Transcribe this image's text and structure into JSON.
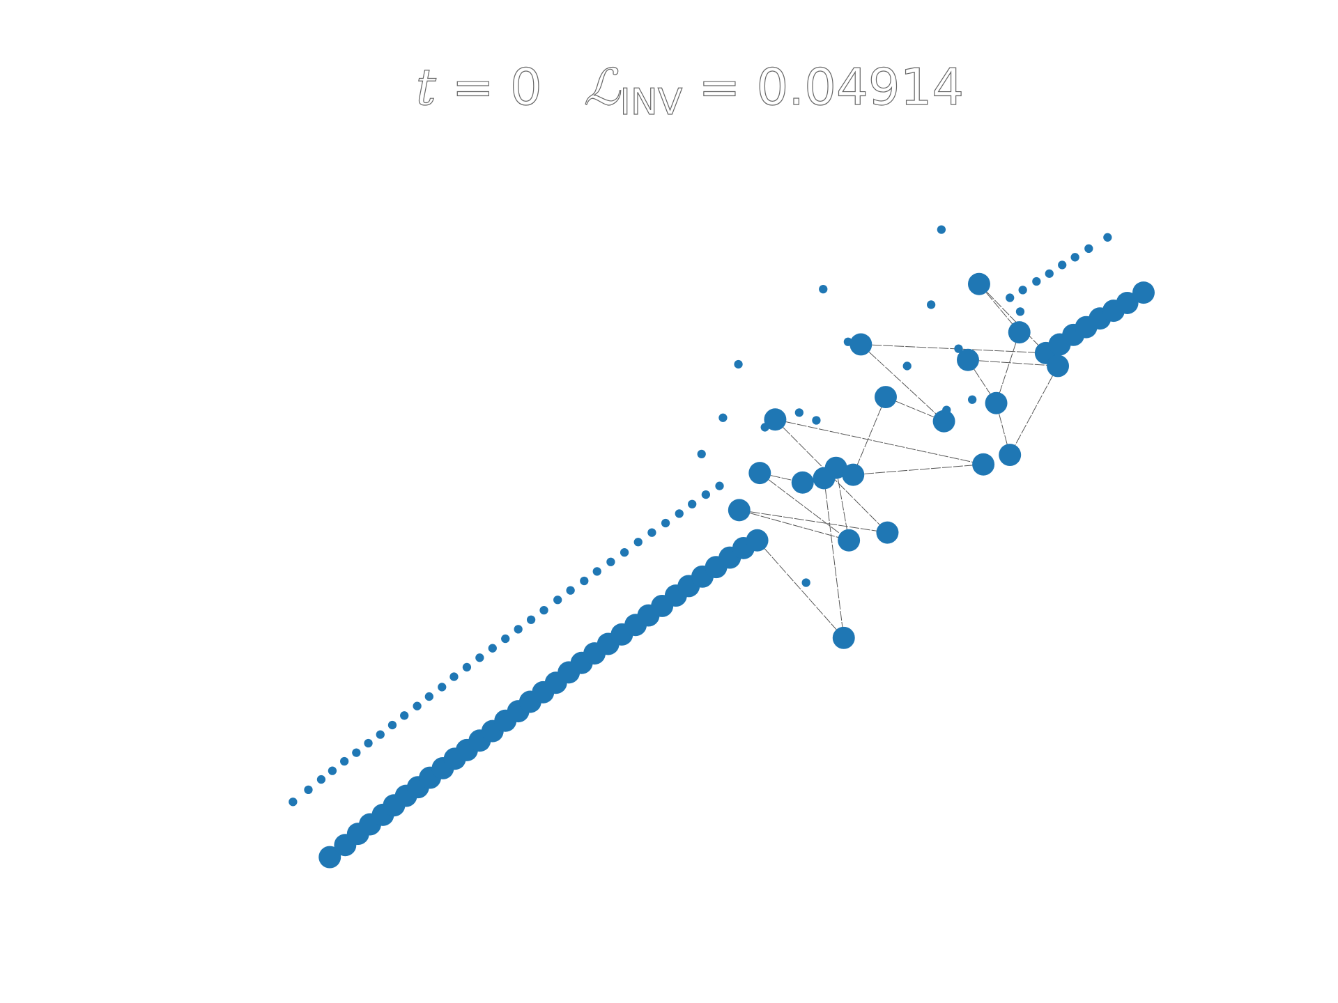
{
  "chart_data": {
    "type": "scatter",
    "title_parts": [
      "t",
      " = 0",
      "ℒ",
      "INV",
      " = 0.04914"
    ],
    "xlim": [
      0,
      1562
    ],
    "ylim": [
      1162,
      0
    ],
    "series": [
      {
        "color": "#1f77b4",
        "marker_radius": 13,
        "x": [
          385,
          403,
          418,
          432,
          447,
          460,
          474,
          488,
          502,
          517,
          531,
          545,
          560,
          575,
          590,
          605,
          619,
          634,
          649,
          664,
          679,
          694,
          710,
          726,
          742,
          757,
          773,
          789,
          804,
          820,
          836,
          852,
          868,
          884,
          1221,
          1237,
          1253,
          1268,
          1284,
          1300,
          1316,
          1335,
          1143,
          1190,
          1005,
          1130,
          1235,
          1034,
          1163,
          1102,
          905,
          1179,
          1148,
          887,
          976,
          996,
          962,
          937,
          863,
          1036,
          991,
          985
        ],
        "values": [
          993,
          979,
          966,
          955,
          944,
          933,
          922,
          912,
          901,
          890,
          879,
          869,
          858,
          847,
          835,
          824,
          813,
          802,
          791,
          779,
          768,
          757,
          746,
          735,
          724,
          713,
          702,
          690,
          679,
          668,
          657,
          646,
          635,
          626,
          409,
          399,
          388,
          379,
          369,
          360,
          351,
          339,
          329,
          385,
          399,
          417,
          424,
          460,
          467,
          488,
          486,
          527,
          538,
          548,
          542,
          550,
          554,
          559,
          591,
          617,
          626,
          739
        ]
      },
      {
        "color": "#1f77b4",
        "marker_radius": 5,
        "x": [
          342,
          360,
          375,
          388,
          402,
          416,
          430,
          444,
          458,
          472,
          487,
          501,
          516,
          530,
          545,
          560,
          575,
          590,
          605,
          620,
          635,
          651,
          666,
          682,
          697,
          713,
          729,
          745,
          761,
          777,
          793,
          808,
          824,
          840,
          1179,
          1194,
          1210,
          1225,
          1240,
          1255,
          1271,
          1293,
          1099,
          961,
          1087,
          1191,
          990,
          1119,
          862,
          1059,
          1135,
          1105,
          933,
          953,
          844,
          893,
          819,
          941
        ],
        "values": [
          929,
          915,
          903,
          893,
          882,
          872,
          861,
          851,
          840,
          829,
          818,
          807,
          796,
          784,
          773,
          762,
          751,
          740,
          729,
          718,
          707,
          695,
          684,
          673,
          662,
          651,
          640,
          628,
          617,
          606,
          595,
          584,
          573,
          563,
          345,
          336,
          326,
          317,
          307,
          298,
          288,
          275,
          266,
          335,
          353,
          361,
          396,
          404,
          422,
          424,
          463,
          475,
          478,
          487,
          484,
          495,
          526,
          675
        ]
      }
    ],
    "edges": [
      [
        42,
        43
      ],
      [
        42,
        34
      ],
      [
        43,
        48
      ],
      [
        44,
        34
      ],
      [
        44,
        49
      ],
      [
        45,
        46
      ],
      [
        45,
        48
      ],
      [
        46,
        51
      ],
      [
        48,
        51
      ],
      [
        47,
        49
      ],
      [
        47,
        55
      ],
      [
        50,
        52
      ],
      [
        50,
        59
      ],
      [
        55,
        52
      ],
      [
        53,
        57
      ],
      [
        53,
        60
      ],
      [
        58,
        59
      ],
      [
        58,
        60
      ],
      [
        56,
        61
      ],
      [
        33,
        61
      ],
      [
        54,
        60
      ]
    ]
  }
}
